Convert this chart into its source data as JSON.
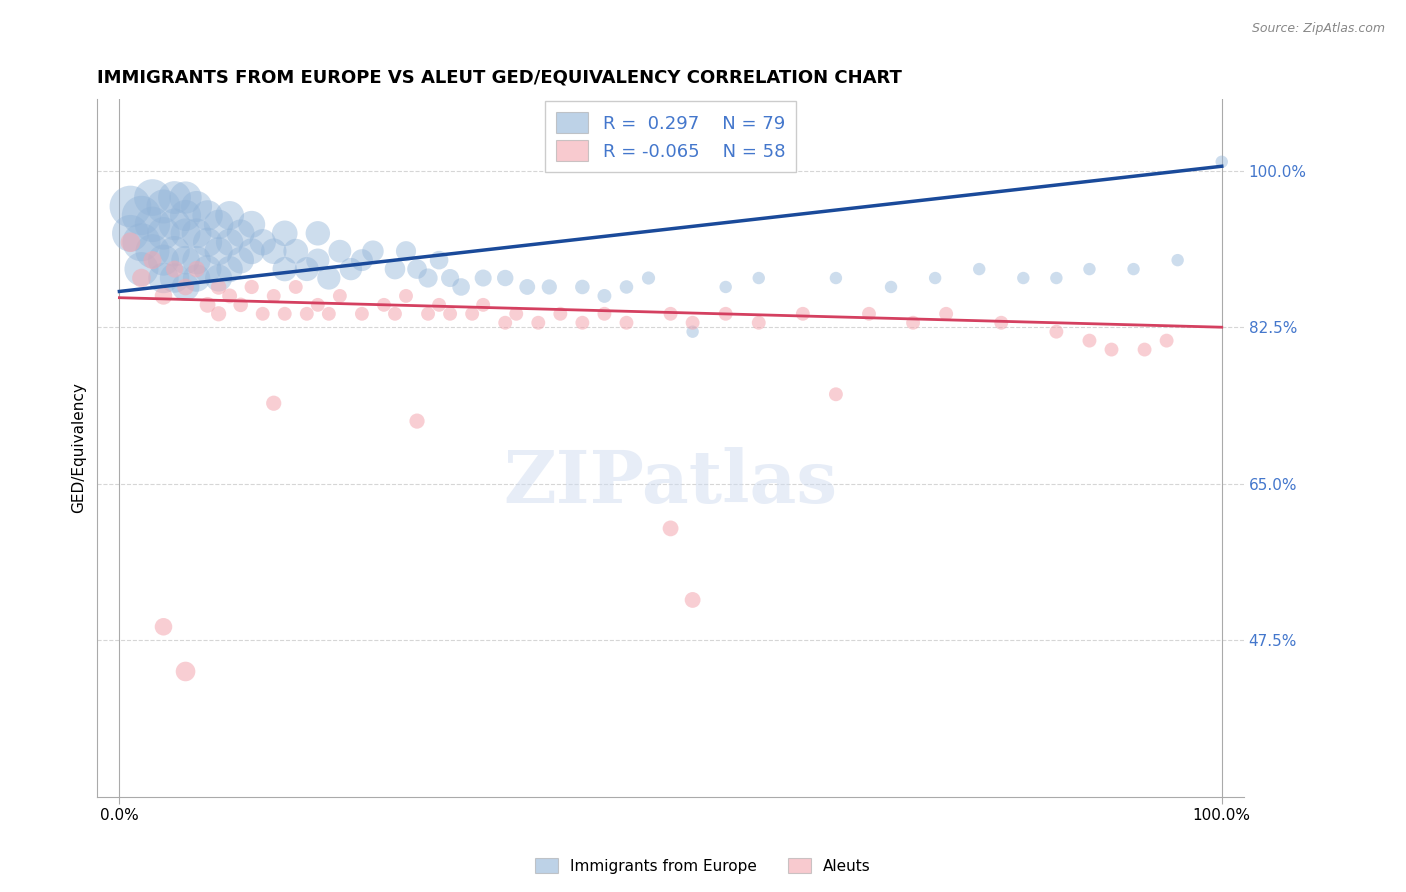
{
  "title": "IMMIGRANTS FROM EUROPE VS ALEUT GED/EQUIVALENCY CORRELATION CHART",
  "source_text": "Source: ZipAtlas.com",
  "ylabel": "GED/Equivalency",
  "legend_blue_label": "Immigrants from Europe",
  "legend_pink_label": "Aleuts",
  "legend_blue_r": "R =  0.297",
  "legend_blue_n": "N = 79",
  "legend_pink_r": "R = -0.065",
  "legend_pink_n": "N = 58",
  "xlim": [
    -0.02,
    1.02
  ],
  "ylim": [
    0.3,
    1.08
  ],
  "yticks": [
    0.475,
    0.65,
    0.825,
    1.0
  ],
  "ytick_labels": [
    "47.5%",
    "65.0%",
    "82.5%",
    "100.0%"
  ],
  "xticks": [
    0.0,
    1.0
  ],
  "xtick_labels": [
    "0.0%",
    "100.0%"
  ],
  "blue_color": "#92B4D8",
  "pink_color": "#F4A7B0",
  "trend_blue_color": "#1A4A9A",
  "trend_pink_color": "#D44060",
  "ytick_color": "#4477CC",
  "background_color": "#FFFFFF",
  "grid_color": "#CCCCCC",
  "blue_trend_start_y": 0.865,
  "blue_trend_end_y": 1.005,
  "pink_trend_start_y": 0.858,
  "pink_trend_end_y": 0.825,
  "blue_scatter_x": [
    0.01,
    0.01,
    0.02,
    0.02,
    0.02,
    0.03,
    0.03,
    0.03,
    0.04,
    0.04,
    0.04,
    0.04,
    0.05,
    0.05,
    0.05,
    0.05,
    0.06,
    0.06,
    0.06,
    0.06,
    0.06,
    0.07,
    0.07,
    0.07,
    0.07,
    0.08,
    0.08,
    0.08,
    0.09,
    0.09,
    0.09,
    0.1,
    0.1,
    0.1,
    0.11,
    0.11,
    0.12,
    0.12,
    0.13,
    0.14,
    0.15,
    0.15,
    0.16,
    0.17,
    0.18,
    0.18,
    0.19,
    0.2,
    0.21,
    0.22,
    0.23,
    0.25,
    0.26,
    0.27,
    0.28,
    0.29,
    0.3,
    0.31,
    0.33,
    0.35,
    0.37,
    0.39,
    0.42,
    0.44,
    0.46,
    0.48,
    0.52,
    0.55,
    0.58,
    0.65,
    0.7,
    0.74,
    0.78,
    0.82,
    0.85,
    0.88,
    0.92,
    0.96,
    1.0
  ],
  "blue_scatter_y": [
    0.96,
    0.93,
    0.95,
    0.92,
    0.89,
    0.97,
    0.94,
    0.91,
    0.96,
    0.93,
    0.9,
    0.88,
    0.97,
    0.94,
    0.91,
    0.88,
    0.97,
    0.95,
    0.93,
    0.9,
    0.87,
    0.96,
    0.93,
    0.9,
    0.88,
    0.95,
    0.92,
    0.89,
    0.94,
    0.91,
    0.88,
    0.95,
    0.92,
    0.89,
    0.93,
    0.9,
    0.94,
    0.91,
    0.92,
    0.91,
    0.93,
    0.89,
    0.91,
    0.89,
    0.93,
    0.9,
    0.88,
    0.91,
    0.89,
    0.9,
    0.91,
    0.89,
    0.91,
    0.89,
    0.88,
    0.9,
    0.88,
    0.87,
    0.88,
    0.88,
    0.87,
    0.87,
    0.87,
    0.86,
    0.87,
    0.88,
    0.82,
    0.87,
    0.88,
    0.88,
    0.87,
    0.88,
    0.89,
    0.88,
    0.88,
    0.89,
    0.89,
    0.9,
    1.01
  ],
  "blue_scatter_sizes": [
    900,
    700,
    800,
    750,
    600,
    700,
    650,
    600,
    600,
    550,
    500,
    480,
    560,
    520,
    480,
    450,
    540,
    500,
    460,
    420,
    400,
    500,
    460,
    420,
    390,
    480,
    440,
    400,
    450,
    410,
    380,
    430,
    390,
    360,
    400,
    370,
    380,
    350,
    360,
    340,
    340,
    310,
    320,
    300,
    310,
    280,
    280,
    270,
    260,
    250,
    240,
    220,
    210,
    200,
    190,
    180,
    170,
    160,
    150,
    140,
    130,
    120,
    110,
    100,
    95,
    90,
    80,
    80,
    80,
    80,
    80,
    80,
    80,
    80,
    80,
    80,
    80,
    80,
    80
  ],
  "pink_scatter_x": [
    0.01,
    0.02,
    0.03,
    0.04,
    0.05,
    0.06,
    0.07,
    0.08,
    0.09,
    0.09,
    0.1,
    0.11,
    0.12,
    0.13,
    0.14,
    0.15,
    0.16,
    0.17,
    0.18,
    0.19,
    0.2,
    0.22,
    0.24,
    0.25,
    0.26,
    0.28,
    0.29,
    0.3,
    0.32,
    0.33,
    0.35,
    0.36,
    0.38,
    0.4,
    0.42,
    0.44,
    0.46,
    0.5,
    0.52,
    0.55,
    0.58,
    0.62,
    0.65,
    0.68,
    0.72,
    0.75,
    0.8,
    0.85,
    0.88,
    0.9,
    0.93,
    0.95,
    0.14,
    0.27,
    0.5,
    0.52,
    0.04,
    0.06
  ],
  "pink_scatter_y": [
    0.92,
    0.88,
    0.9,
    0.86,
    0.89,
    0.87,
    0.89,
    0.85,
    0.87,
    0.84,
    0.86,
    0.85,
    0.87,
    0.84,
    0.86,
    0.84,
    0.87,
    0.84,
    0.85,
    0.84,
    0.86,
    0.84,
    0.85,
    0.84,
    0.86,
    0.84,
    0.85,
    0.84,
    0.84,
    0.85,
    0.83,
    0.84,
    0.83,
    0.84,
    0.83,
    0.84,
    0.83,
    0.84,
    0.83,
    0.84,
    0.83,
    0.84,
    0.75,
    0.84,
    0.83,
    0.84,
    0.83,
    0.82,
    0.81,
    0.8,
    0.8,
    0.81,
    0.74,
    0.72,
    0.6,
    0.52,
    0.49,
    0.44
  ],
  "pink_scatter_sizes": [
    200,
    180,
    170,
    160,
    150,
    145,
    140,
    130,
    125,
    120,
    115,
    110,
    105,
    100,
    100,
    100,
    100,
    100,
    100,
    100,
    100,
    100,
    100,
    100,
    100,
    100,
    100,
    100,
    100,
    100,
    100,
    100,
    100,
    100,
    100,
    100,
    100,
    100,
    100,
    100,
    100,
    100,
    100,
    100,
    100,
    100,
    100,
    100,
    100,
    100,
    100,
    100,
    120,
    120,
    130,
    130,
    160,
    200
  ]
}
